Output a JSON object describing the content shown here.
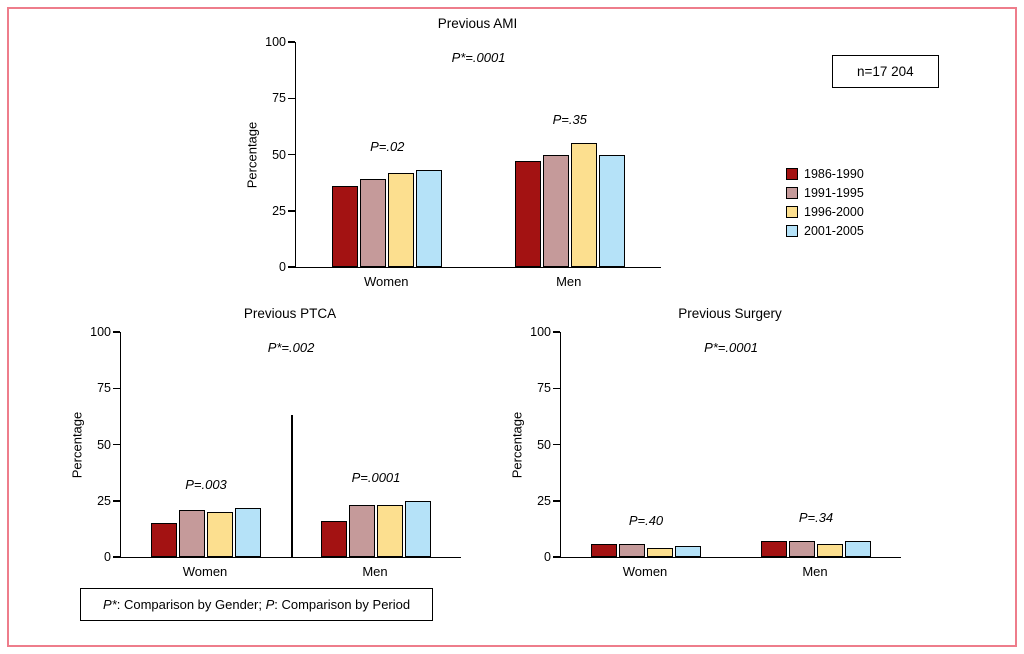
{
  "figure": {
    "n_label": "n=17 204",
    "footnote": {
      "p_star": "P*",
      "text1": ": Comparison by Gender; ",
      "p": "P",
      "text2": ": Comparison by Period"
    },
    "legend": {
      "position": "right",
      "items": [
        {
          "label": "1986-1990",
          "color": "#a31212"
        },
        {
          "label": "1991-1995",
          "color": "#c59a9a"
        },
        {
          "label": "1996-2000",
          "color": "#fcdf8f"
        },
        {
          "label": "2001-2005",
          "color": "#b5e2f8"
        }
      ]
    }
  },
  "chart_data": [
    {
      "type": "bar",
      "title": "Previous AMI",
      "ylabel": "Percentage",
      "xlabel": "",
      "ylim": [
        0,
        100
      ],
      "yticks": [
        0,
        25,
        50,
        75,
        100
      ],
      "grid": false,
      "categories": [
        "Women",
        "Men"
      ],
      "series": [
        {
          "name": "1986-1990",
          "values": [
            36,
            47
          ]
        },
        {
          "name": "1991-1995",
          "values": [
            39,
            50
          ]
        },
        {
          "name": "1996-2000",
          "values": [
            42,
            55
          ]
        },
        {
          "name": "2001-2005",
          "values": [
            43,
            50
          ]
        }
      ],
      "annotations": {
        "overall": "P*=.0001",
        "groups": [
          "P=.02",
          "P=.35"
        ]
      }
    },
    {
      "type": "bar",
      "title": "Previous PTCA",
      "ylabel": "Percentage",
      "xlabel": "",
      "ylim": [
        0,
        100
      ],
      "yticks": [
        0,
        25,
        50,
        75,
        100
      ],
      "grid": false,
      "categories": [
        "Women",
        "Men"
      ],
      "series": [
        {
          "name": "1986-1990",
          "values": [
            15,
            16
          ]
        },
        {
          "name": "1991-1995",
          "values": [
            21,
            23
          ]
        },
        {
          "name": "1996-2000",
          "values": [
            20,
            23
          ]
        },
        {
          "name": "2001-2005",
          "values": [
            22,
            25
          ]
        }
      ],
      "annotations": {
        "overall": "P*=.002",
        "groups": [
          "P=.003",
          "P=.0001"
        ]
      },
      "divider": {
        "x_percent": 50,
        "height_percent": 63
      }
    },
    {
      "type": "bar",
      "title": "Previous Surgery",
      "ylabel": "Percentage",
      "xlabel": "",
      "ylim": [
        0,
        100
      ],
      "yticks": [
        0,
        25,
        50,
        75,
        100
      ],
      "grid": false,
      "categories": [
        "Women",
        "Men"
      ],
      "series": [
        {
          "name": "1986-1990",
          "values": [
            6,
            7
          ]
        },
        {
          "name": "1991-1995",
          "values": [
            6,
            7
          ]
        },
        {
          "name": "1996-2000",
          "values": [
            4,
            6
          ]
        },
        {
          "name": "2001-2005",
          "values": [
            5,
            7
          ]
        }
      ],
      "annotations": {
        "overall": "P*=.0001",
        "groups": [
          "P=.40",
          "P=.34"
        ]
      }
    }
  ]
}
